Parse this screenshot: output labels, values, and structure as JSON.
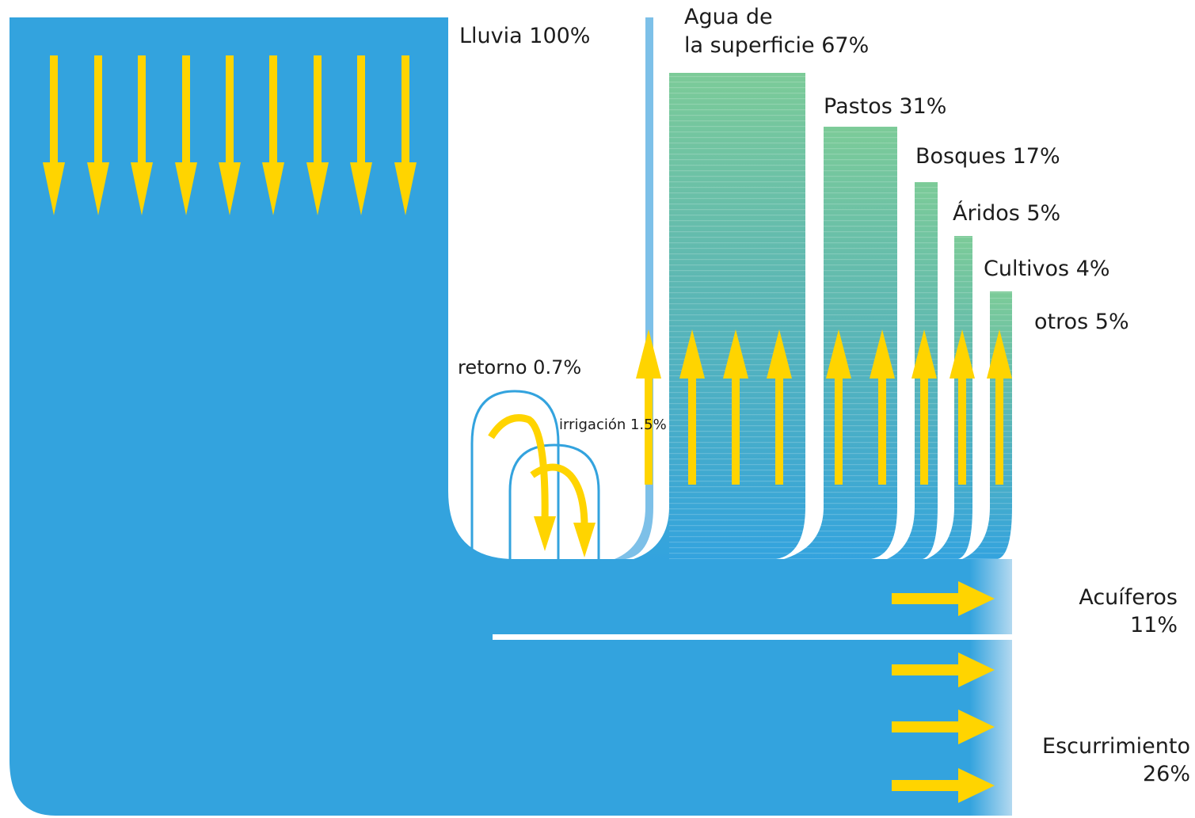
{
  "labels": {
    "rain": "Lluvia 100%",
    "surface_line1": "Agua de",
    "surface_line2": "la superficie 67%",
    "pastures": "Pastos 31%",
    "forests": "Bosques 17%",
    "arid": "Áridos 5%",
    "crops": "Cultivos 4%",
    "others": "otros 5%",
    "return": "retorno 0.7%",
    "irrigation": "irrigación 1.5%",
    "aquifers_line1": "Acuíferos",
    "aquifers_line2": "11%",
    "runoff_line1": "Escurrimiento",
    "runoff_line2": "26%"
  },
  "colors": {
    "water": "#33a3de",
    "water_light": "#7dc0e8",
    "vegetation": "#7ccb98",
    "arrow": "#ffd400",
    "background": "#ffffff",
    "text": "#1c1c1c"
  },
  "chart_data": {
    "type": "sankey",
    "source": {
      "name": "Lluvia",
      "percent": 100
    },
    "flows": [
      {
        "name": "Agua de la superficie",
        "percent": 67,
        "direction": "up"
      },
      {
        "name": "Pastos",
        "percent": 31,
        "direction": "up"
      },
      {
        "name": "Bosques",
        "percent": 17,
        "direction": "up"
      },
      {
        "name": "Áridos",
        "percent": 5,
        "direction": "up"
      },
      {
        "name": "Cultivos",
        "percent": 4,
        "direction": "up"
      },
      {
        "name": "otros",
        "percent": 5,
        "direction": "up"
      },
      {
        "name": "Acuíferos",
        "percent": 11,
        "direction": "right"
      },
      {
        "name": "Escurrimiento",
        "percent": 26,
        "direction": "right"
      },
      {
        "name": "retorno",
        "percent": 0.7,
        "direction": "loop"
      },
      {
        "name": "irrigación",
        "percent": 1.5,
        "direction": "loop"
      }
    ]
  }
}
